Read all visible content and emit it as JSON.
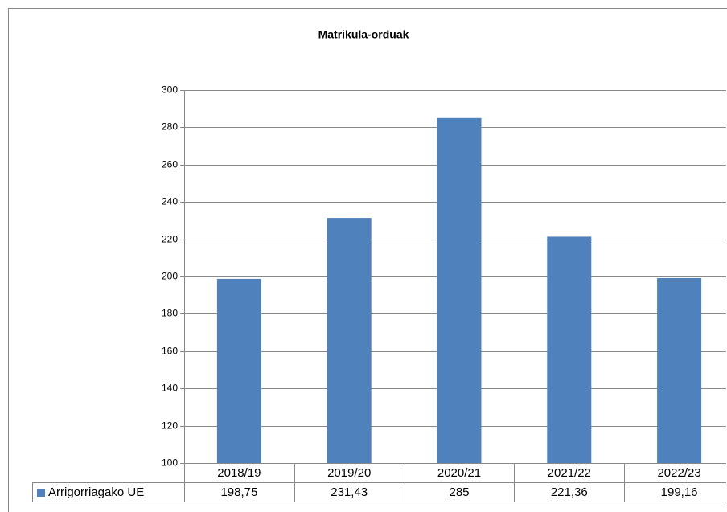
{
  "chart_data": {
    "type": "bar",
    "title": "Matrikula-orduak",
    "categories": [
      "2018/19",
      "2019/20",
      "2020/21",
      "2021/22",
      "2022/23"
    ],
    "series": [
      {
        "name": "Arrigorriagako UE",
        "color": "#4f81bd",
        "values": [
          198.75,
          231.43,
          285,
          221.36,
          199.16
        ],
        "value_labels": [
          "198,75",
          "231,43",
          "285",
          "221,36",
          "199,16"
        ]
      }
    ],
    "ylim": [
      100,
      300
    ],
    "yticks": [
      100,
      120,
      140,
      160,
      180,
      200,
      220,
      240,
      260,
      280,
      300
    ],
    "grid": true
  }
}
